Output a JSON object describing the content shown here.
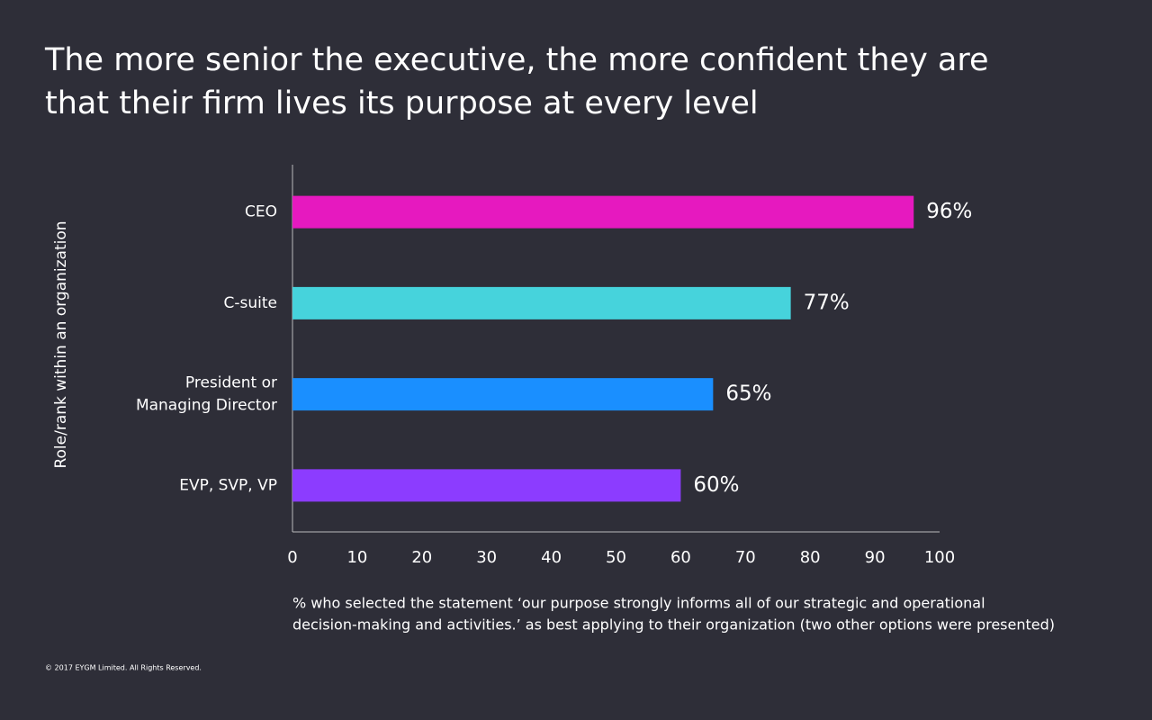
{
  "chart_data": {
    "type": "hbar",
    "title": [
      "The more senior the executive, the more confident they are",
      "that their firm lives its purpose at every level"
    ],
    "y_label": "Role/rank within an organization",
    "categories": [
      [
        "CEO"
      ],
      [
        "C-suite"
      ],
      [
        "President or",
        "Managing Director"
      ],
      [
        "EVP, SVP, VP"
      ]
    ],
    "values": [
      96,
      77,
      65,
      60
    ],
    "value_labels": [
      "96%",
      "77%",
      "65%",
      "60%"
    ],
    "colors": [
      "#e619bf",
      "#46d3dc",
      "#1a8fff",
      "#8c3cff"
    ],
    "xlim": [
      0,
      100
    ],
    "xticks": [
      0,
      10,
      20,
      30,
      40,
      50,
      60,
      70,
      80,
      90,
      100
    ],
    "grid": false,
    "note": [
      "% who selected the statement ‘our purpose strongly informs all of our strategic and operational",
      "decision-making and activities.’ as best applying to their organization (two other options were presented)"
    ],
    "copyright": "© 2017 EYGM Limited. All Rights Reserved."
  }
}
